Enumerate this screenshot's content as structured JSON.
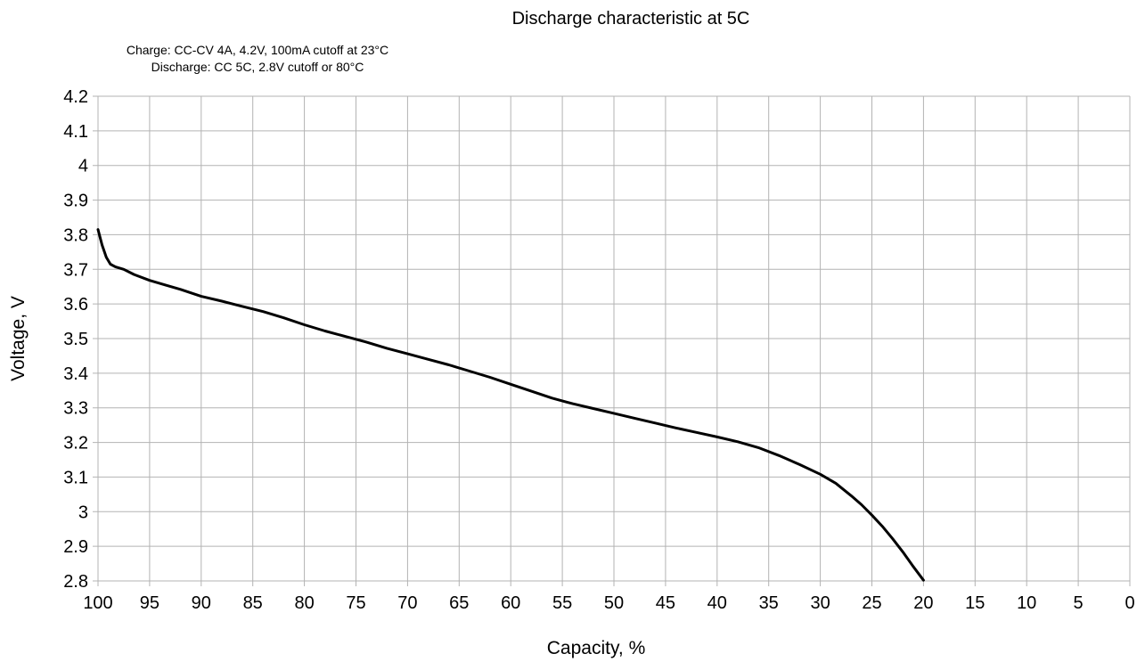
{
  "chart_data": {
    "type": "line",
    "title": "Discharge characteristic at 5C",
    "subtitle": [
      "Charge: CC-CV 4A, 4.2V, 100mA cutoff at 23°C",
      "Discharge: CC 5C, 2.8V cutoff or 80°C"
    ],
    "xlabel": "Capacity, %",
    "ylabel": "Voltage, V",
    "xlim": [
      100,
      0
    ],
    "ylim": [
      2.8,
      4.2
    ],
    "x_reversed": true,
    "grid": true,
    "x_ticks": [
      "100",
      "95",
      "90",
      "85",
      "80",
      "75",
      "70",
      "65",
      "60",
      "55",
      "50",
      "45",
      "40",
      "35",
      "30",
      "25",
      "20",
      "15",
      "10",
      "5",
      "0"
    ],
    "y_ticks": [
      "2.8",
      "2.9",
      "3",
      "3.1",
      "3.2",
      "3.3",
      "3.4",
      "3.5",
      "3.6",
      "3.7",
      "3.8",
      "3.9",
      "4",
      "4.1",
      "4.2"
    ],
    "series": [
      {
        "color": "#000000",
        "points": [
          [
            100,
            3.815
          ],
          [
            99.6,
            3.77
          ],
          [
            99.2,
            3.735
          ],
          [
            98.8,
            3.715
          ],
          [
            98.3,
            3.707
          ],
          [
            97.5,
            3.7
          ],
          [
            96.5,
            3.685
          ],
          [
            95,
            3.668
          ],
          [
            93.5,
            3.655
          ],
          [
            92,
            3.642
          ],
          [
            90,
            3.622
          ],
          [
            88,
            3.608
          ],
          [
            86,
            3.593
          ],
          [
            84,
            3.578
          ],
          [
            82,
            3.56
          ],
          [
            80,
            3.54
          ],
          [
            78,
            3.522
          ],
          [
            76,
            3.506
          ],
          [
            74,
            3.49
          ],
          [
            72,
            3.472
          ],
          [
            70,
            3.456
          ],
          [
            68,
            3.44
          ],
          [
            66,
            3.424
          ],
          [
            64,
            3.406
          ],
          [
            62,
            3.388
          ],
          [
            60,
            3.368
          ],
          [
            58,
            3.348
          ],
          [
            56,
            3.328
          ],
          [
            54,
            3.312
          ],
          [
            52,
            3.298
          ],
          [
            50,
            3.284
          ],
          [
            48,
            3.27
          ],
          [
            46,
            3.256
          ],
          [
            44,
            3.242
          ],
          [
            42,
            3.229
          ],
          [
            40,
            3.216
          ],
          [
            38,
            3.202
          ],
          [
            36,
            3.185
          ],
          [
            34,
            3.162
          ],
          [
            32,
            3.136
          ],
          [
            30,
            3.108
          ],
          [
            28.5,
            3.082
          ],
          [
            27,
            3.046
          ],
          [
            26,
            3.02
          ],
          [
            25,
            2.99
          ],
          [
            24,
            2.958
          ],
          [
            23,
            2.922
          ],
          [
            22,
            2.884
          ],
          [
            21,
            2.842
          ],
          [
            20,
            2.802
          ]
        ]
      }
    ]
  }
}
